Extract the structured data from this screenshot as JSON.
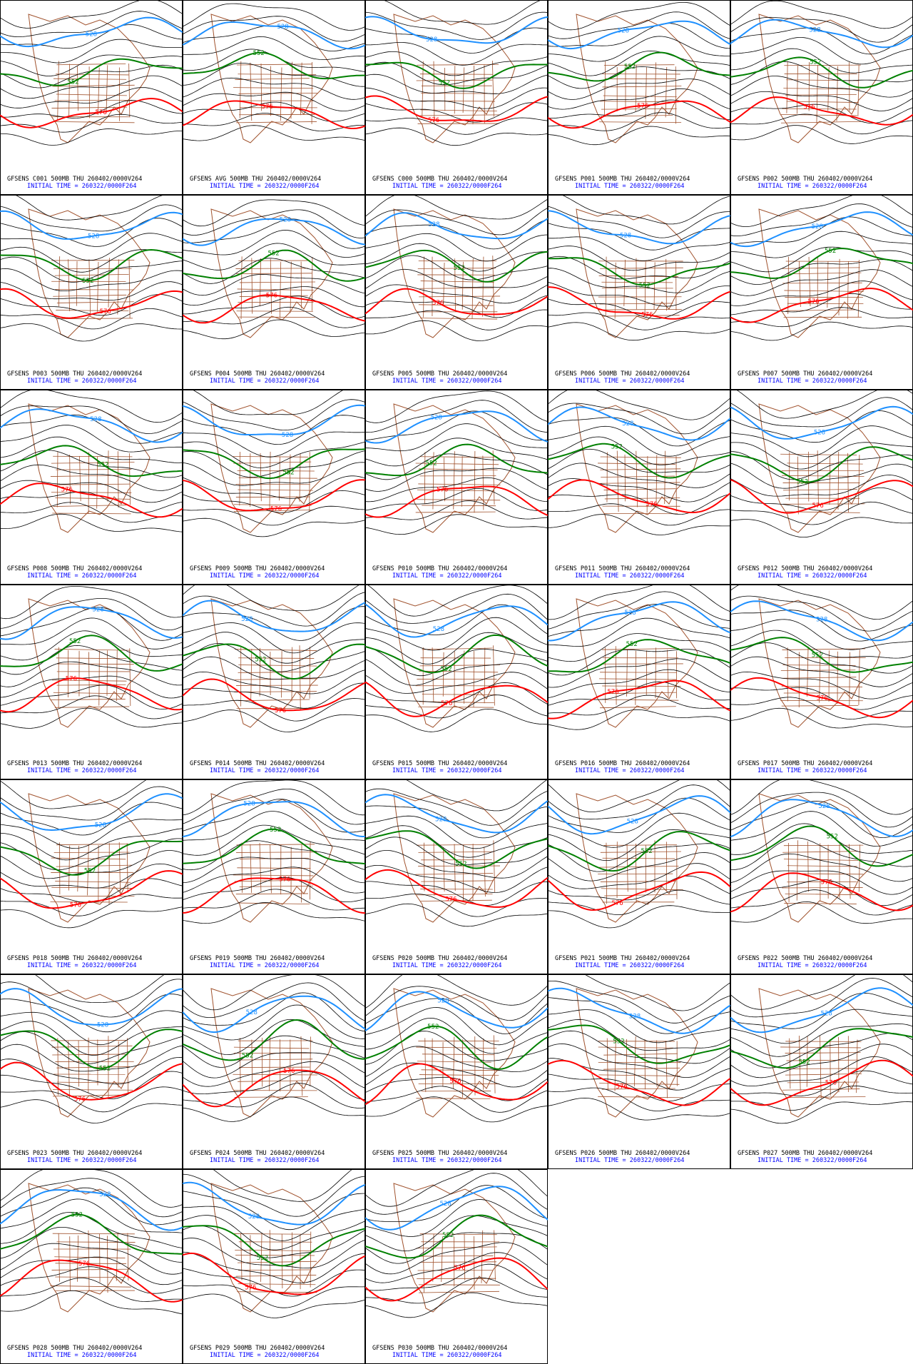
{
  "contour_levels": [
    {
      "label": "528",
      "color": "#1e90ff"
    },
    {
      "label": "552",
      "color": "#008000"
    },
    {
      "label": "576",
      "color": "#ff0000"
    }
  ],
  "panels": [
    {
      "title": "GFSENS C001 500MB THU 260402/0000V264",
      "initial_time": "INITIAL TIME = 260322/0000F264"
    },
    {
      "title": "GFSENS AVG 500MB THU 260402/0000V264",
      "initial_time": "INITIAL TIME = 260322/0000F264"
    },
    {
      "title": "GFSENS C000 500MB THU 260402/0000V264",
      "initial_time": "INITIAL TIME = 260322/0000F264"
    },
    {
      "title": "GFSENS P001 500MB THU 260402/0000V264",
      "initial_time": "INITIAL TIME = 260322/0000F264"
    },
    {
      "title": "GFSENS P002 500MB THU 260402/0000V264",
      "initial_time": "INITIAL TIME = 260322/0000F264"
    },
    {
      "title": "GFSENS P003 500MB THU 260402/0000V264",
      "initial_time": "INITIAL TIME = 260322/0000F264"
    },
    {
      "title": "GFSENS P004 500MB THU 260402/0000V264",
      "initial_time": "INITIAL TIME = 260322/0000F264"
    },
    {
      "title": "GFSENS P005 500MB THU 260402/0000V264",
      "initial_time": "INITIAL TIME = 260322/0000F264"
    },
    {
      "title": "GFSENS P006 500MB THU 260402/0000V264",
      "initial_time": "INITIAL TIME = 260322/0000F264"
    },
    {
      "title": "GFSENS P007 500MB THU 260402/0000V264",
      "initial_time": "INITIAL TIME = 260322/0000F264"
    },
    {
      "title": "GFSENS P008 500MB THU 260402/0000V264",
      "initial_time": "INITIAL TIME = 260322/0000F264"
    },
    {
      "title": "GFSENS P009 500MB THU 260402/0000V264",
      "initial_time": "INITIAL TIME = 260322/0000F264"
    },
    {
      "title": "GFSENS P010 500MB THU 260402/0000V264",
      "initial_time": "INITIAL TIME = 260322/0000F264"
    },
    {
      "title": "GFSENS P011 500MB THU 260402/0000V264",
      "initial_time": "INITIAL TIME = 260322/0000F264"
    },
    {
      "title": "GFSENS P012 500MB THU 260402/0000V264",
      "initial_time": "INITIAL TIME = 260322/0000F264"
    },
    {
      "title": "GFSENS P013 500MB THU 260402/0000V264",
      "initial_time": "INITIAL TIME = 260322/0000F264"
    },
    {
      "title": "GFSENS P014 500MB THU 260402/0000V264",
      "initial_time": "INITIAL TIME = 260322/0000F264"
    },
    {
      "title": "GFSENS P015 500MB THU 260402/0000V264",
      "initial_time": "INITIAL TIME = 260322/0000F264"
    },
    {
      "title": "GFSENS P016 500MB THU 260402/0000V264",
      "initial_time": "INITIAL TIME = 260322/0000F264"
    },
    {
      "title": "GFSENS P017 500MB THU 260402/0000V264",
      "initial_time": "INITIAL TIME = 260322/0000F264"
    },
    {
      "title": "GFSENS P018 500MB THU 260402/0000V264",
      "initial_time": "INITIAL TIME = 260322/0000F264"
    },
    {
      "title": "GFSENS P019 500MB THU 260402/0000V264",
      "initial_time": "INITIAL TIME = 260322/0000F264"
    },
    {
      "title": "GFSENS P020 500MB THU 260402/0000V264",
      "initial_time": "INITIAL TIME = 260322/0000F264"
    },
    {
      "title": "GFSENS P021 500MB THU 260402/0000V264",
      "initial_time": "INITIAL TIME = 260322/0000F264"
    },
    {
      "title": "GFSENS P022 500MB THU 260402/0000V264",
      "initial_time": "INITIAL TIME = 260322/0000F264"
    },
    {
      "title": "GFSENS P023 500MB THU 260402/0000V264",
      "initial_time": "INITIAL TIME = 260322/0000F264"
    },
    {
      "title": "GFSENS P024 500MB THU 260402/0000V264",
      "initial_time": "INITIAL TIME = 260322/0000F264"
    },
    {
      "title": "GFSENS P025 500MB THU 260402/0000V264",
      "initial_time": "INITIAL TIME = 260322/0000F264"
    },
    {
      "title": "GFSENS P026 500MB THU 260402/0000V264",
      "initial_time": "INITIAL TIME = 260322/0000F264"
    },
    {
      "title": "GFSENS P027 500MB THU 260402/0000V264",
      "initial_time": "INITIAL TIME = 260322/0000F264"
    },
    {
      "title": "GFSENS P028 500MB THU 260402/0000V264",
      "initial_time": "INITIAL TIME = 260322/0000F264"
    },
    {
      "title": "GFSENS P029 500MB THU 260402/0000V264",
      "initial_time": "INITIAL TIME = 260322/0000F264"
    },
    {
      "title": "GFSENS P030 500MB THU 260402/0000V264",
      "initial_time": "INITIAL TIME = 260322/0000F264"
    }
  ]
}
